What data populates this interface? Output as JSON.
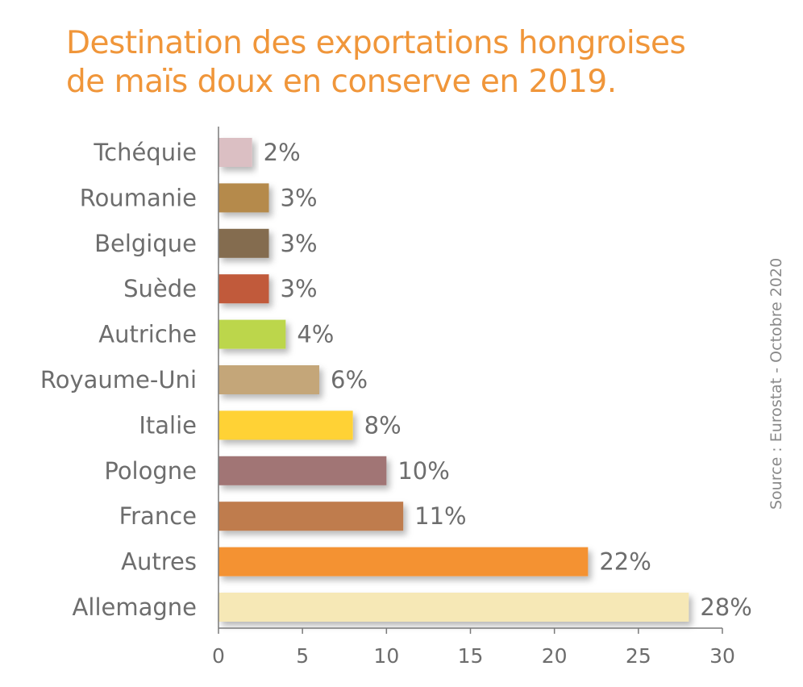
{
  "chart_data": {
    "type": "bar",
    "orientation": "horizontal",
    "title_lines": [
      "Destination des exportations hongroises",
      "de maïs doux en conserve en 2019."
    ],
    "categories": [
      "Tchéquie",
      "Roumanie",
      "Belgique",
      "Suède",
      "Autriche",
      "Royaume-Uni",
      "Italie",
      "Pologne",
      "France",
      "Autres",
      "Allemagne"
    ],
    "values": [
      2,
      3,
      3,
      3,
      4,
      6,
      8,
      10,
      11,
      22,
      28
    ],
    "value_labels": [
      "2%",
      "3%",
      "3%",
      "3%",
      "4%",
      "6%",
      "8%",
      "10%",
      "11%",
      "22%",
      "28%"
    ],
    "colors": [
      "#dbbfc3",
      "#b58a4b",
      "#846c50",
      "#c15a3a",
      "#bcd64c",
      "#c4a679",
      "#ffd235",
      "#a17575",
      "#bf7b4e",
      "#f49233",
      "#f6e8b6"
    ],
    "xlim": [
      0,
      30
    ],
    "xticks": [
      0,
      5,
      10,
      15,
      20,
      25,
      30
    ],
    "xtick_labels": [
      "0",
      "5",
      "10",
      "15",
      "20",
      "25",
      "30"
    ],
    "grid": false,
    "source": "Source : Eurostat - Octobre 2020"
  }
}
